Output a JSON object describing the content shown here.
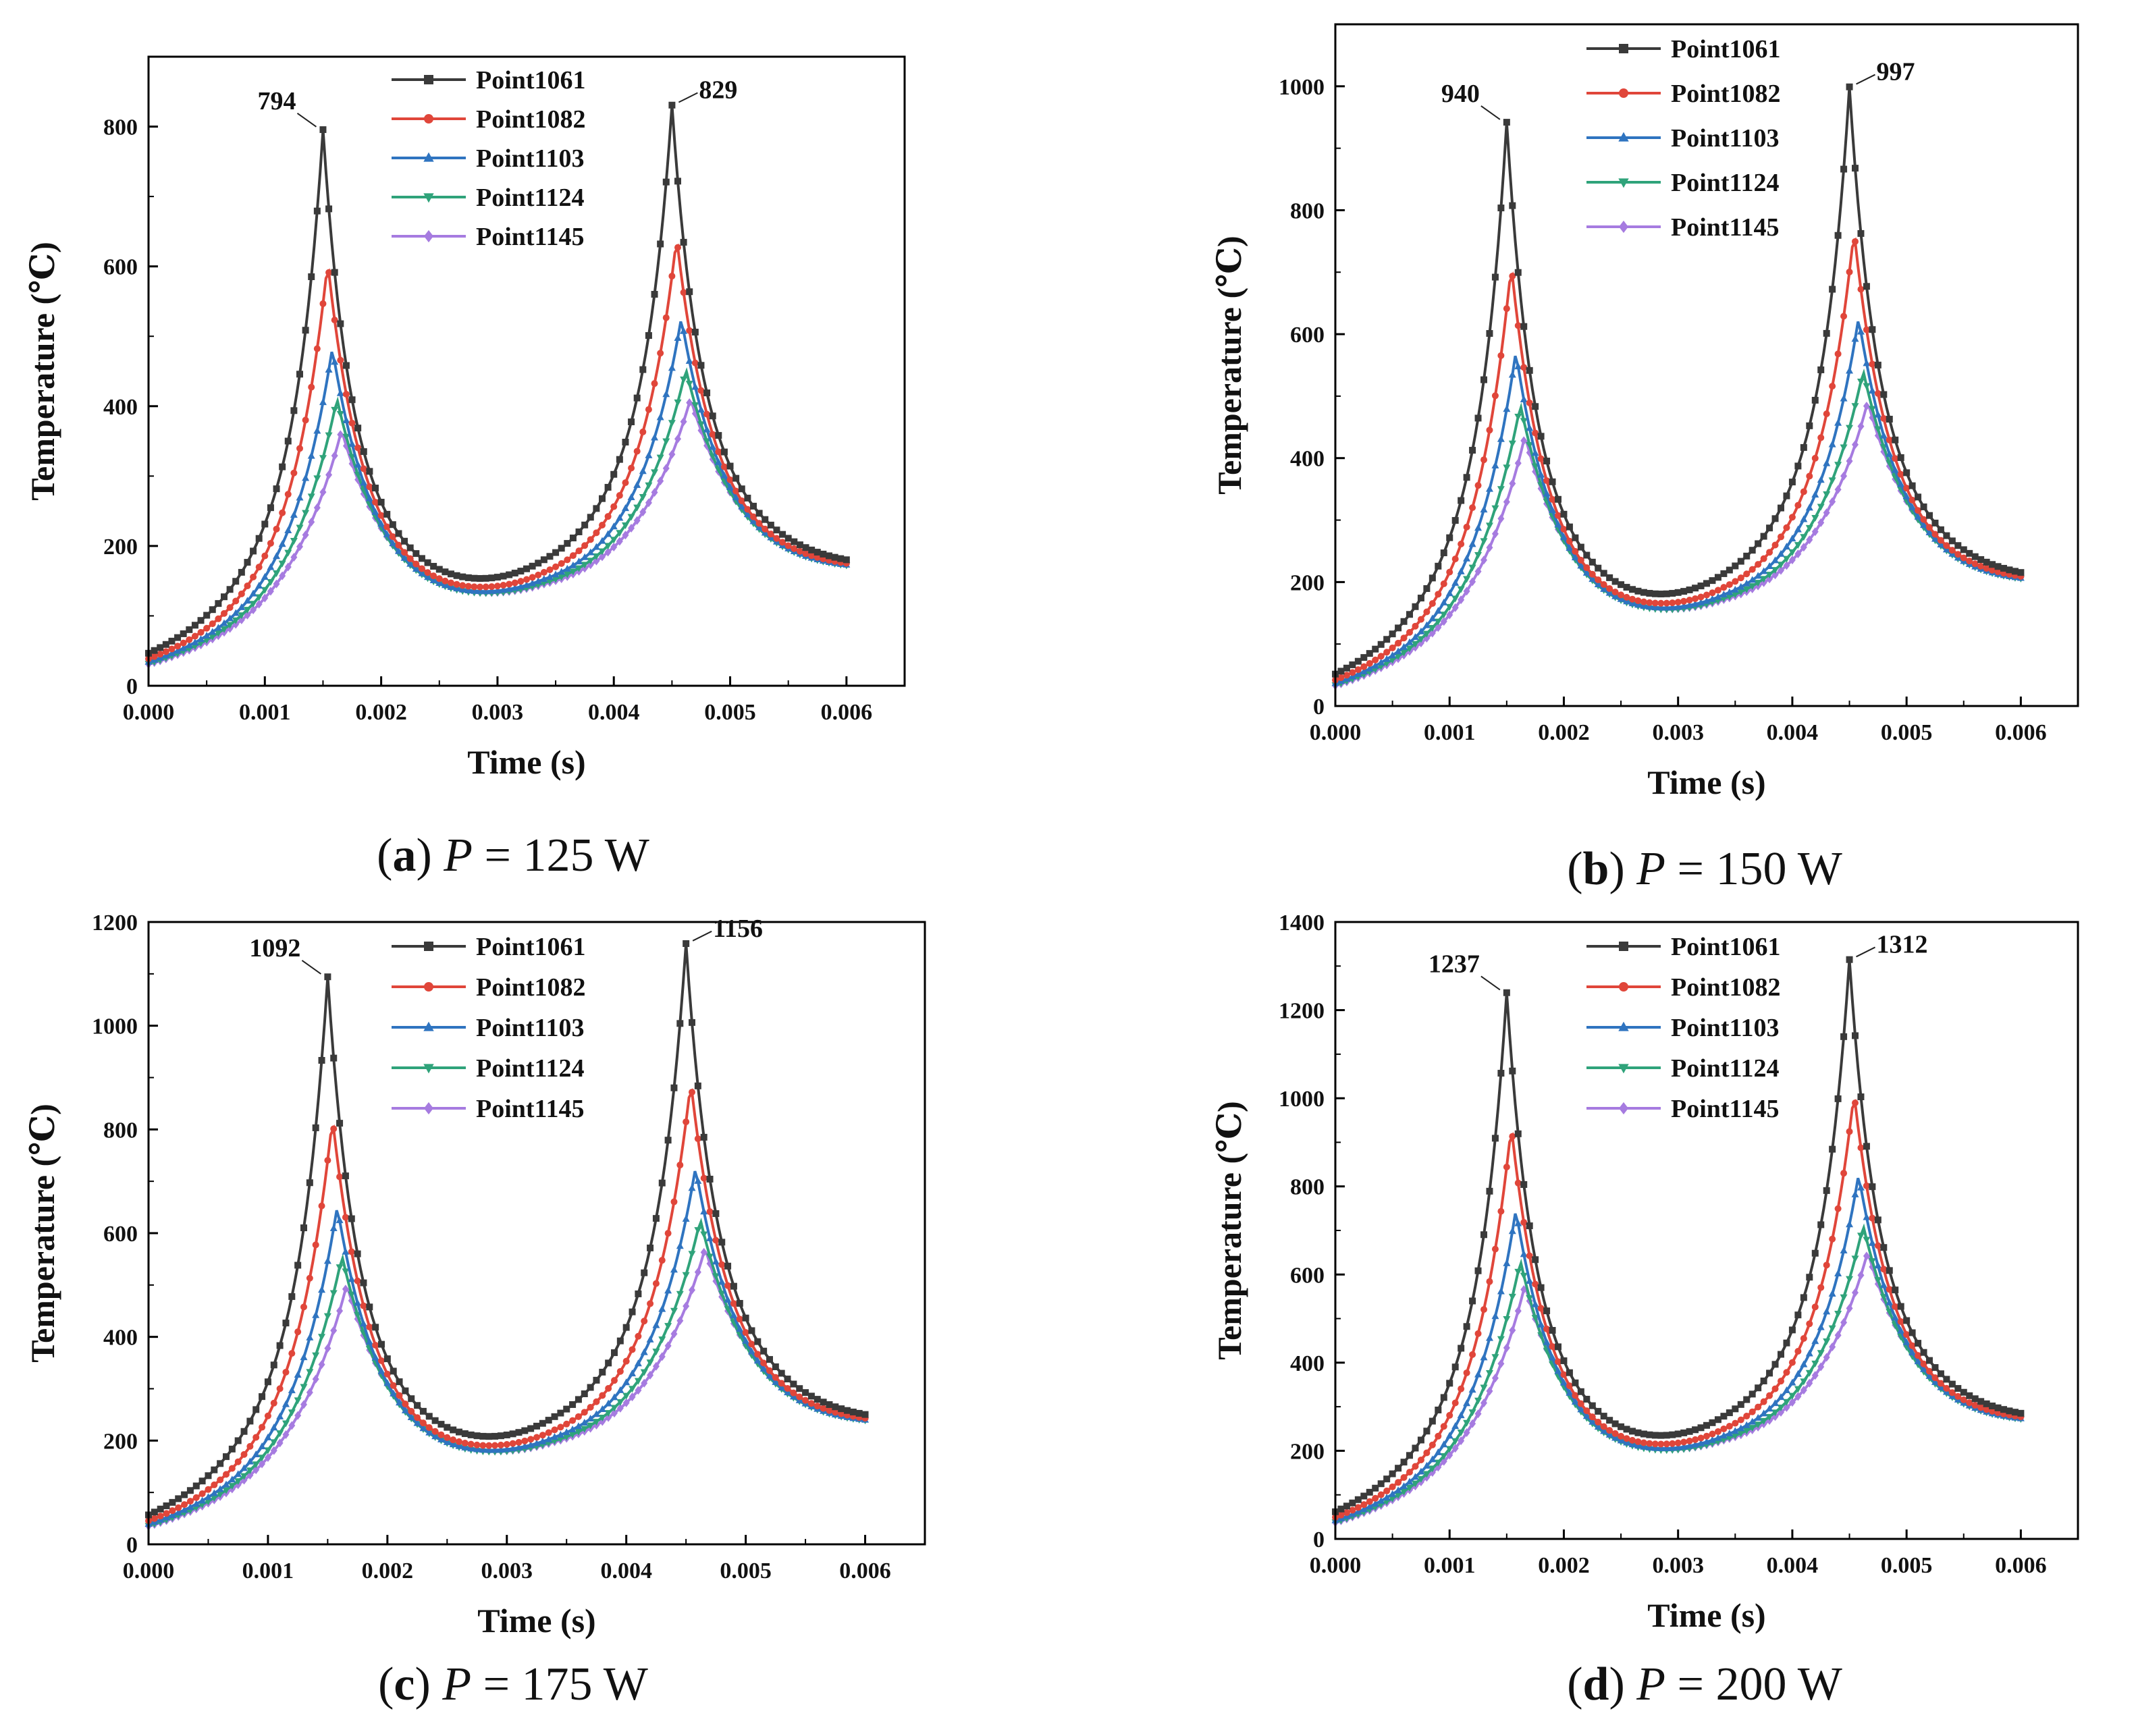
{
  "chart_data": [
    {
      "type": "line",
      "panel": "a",
      "caption": {
        "letter": "a",
        "var": "P",
        "rest": " = 125 W"
      },
      "xlabel": "Time (s)",
      "ylabel": "Temperature (℃)",
      "xlim": [
        0,
        0.0065
      ],
      "ylim": [
        0,
        900
      ],
      "xticks": [
        "0.000",
        "0.001",
        "0.002",
        "0.003",
        "0.004",
        "0.005",
        "0.006"
      ],
      "yticks": [
        "0",
        "200",
        "400",
        "600",
        "800"
      ],
      "ytick_values": [
        0,
        200,
        400,
        600,
        800
      ],
      "base": {
        "start": 20,
        "mid": 115,
        "end": 155
      },
      "series": [
        {
          "name": "Point1061",
          "color": "#3a3a3a",
          "marker": "square",
          "peak1": 794,
          "peak2": 829
        },
        {
          "name": "Point1082",
          "color": "#e0463a",
          "marker": "circle",
          "peak1": 605,
          "peak2": 640
        },
        {
          "name": "Point1103",
          "color": "#2f74c0",
          "marker": "triangle",
          "peak1": 482,
          "peak2": 525
        },
        {
          "name": "Point1124",
          "color": "#2fa37a",
          "marker": "tri-down",
          "peak1": 410,
          "peak2": 452
        },
        {
          "name": "Point1145",
          "color": "#a67be0",
          "marker": "diamond",
          "peak1": 365,
          "peak2": 410
        }
      ],
      "annotations": [
        "794",
        "829"
      ]
    },
    {
      "type": "line",
      "panel": "b",
      "caption": {
        "letter": "b",
        "var": "P",
        "rest": " = 150 W"
      },
      "xlabel": "Time (s)",
      "ylabel": "Temperature (℃)",
      "xlim": [
        0,
        0.0065
      ],
      "ylim": [
        0,
        1100
      ],
      "xticks": [
        "0.000",
        "0.001",
        "0.002",
        "0.003",
        "0.004",
        "0.005",
        "0.006"
      ],
      "yticks": [
        "0",
        "200",
        "400",
        "600",
        "800",
        "1000"
      ],
      "ytick_values": [
        0,
        200,
        400,
        600,
        800,
        1000
      ],
      "base": {
        "start": 20,
        "mid": 135,
        "end": 185
      },
      "series": [
        {
          "name": "Point1061",
          "color": "#3a3a3a",
          "marker": "square",
          "peak1": 940,
          "peak2": 997
        },
        {
          "name": "Point1082",
          "color": "#e0463a",
          "marker": "circle",
          "peak1": 710,
          "peak2": 765
        },
        {
          "name": "Point1103",
          "color": "#2f74c0",
          "marker": "triangle",
          "peak1": 570,
          "peak2": 625
        },
        {
          "name": "Point1124",
          "color": "#2fa37a",
          "marker": "tri-down",
          "peak1": 485,
          "peak2": 540
        },
        {
          "name": "Point1145",
          "color": "#a67be0",
          "marker": "diamond",
          "peak1": 435,
          "peak2": 490
        }
      ],
      "annotations": [
        "940",
        "997"
      ]
    },
    {
      "type": "line",
      "panel": "c",
      "caption": {
        "letter": "c",
        "var": "P",
        "rest": " = 175 W"
      },
      "xlabel": "Time (s)",
      "ylabel": "Temperature (℃)",
      "xlim": [
        0,
        0.0065
      ],
      "ylim": [
        0,
        1200
      ],
      "xticks": [
        "0.000",
        "0.001",
        "0.002",
        "0.003",
        "0.004",
        "0.005",
        "0.006"
      ],
      "yticks": [
        "0",
        "200",
        "400",
        "600",
        "800",
        "1000",
        "1200"
      ],
      "ytick_values": [
        0,
        200,
        400,
        600,
        800,
        1000,
        1200
      ],
      "base": {
        "start": 20,
        "mid": 155,
        "end": 215
      },
      "series": [
        {
          "name": "Point1061",
          "color": "#3a3a3a",
          "marker": "square",
          "peak1": 1092,
          "peak2": 1156
        },
        {
          "name": "Point1082",
          "color": "#e0463a",
          "marker": "circle",
          "peak1": 820,
          "peak2": 890
        },
        {
          "name": "Point1103",
          "color": "#2f74c0",
          "marker": "triangle",
          "peak1": 650,
          "peak2": 725
        },
        {
          "name": "Point1124",
          "color": "#2fa37a",
          "marker": "tri-down",
          "peak1": 555,
          "peak2": 625
        },
        {
          "name": "Point1145",
          "color": "#a67be0",
          "marker": "diamond",
          "peak1": 500,
          "peak2": 570
        }
      ],
      "annotations": [
        "1092",
        "1156"
      ]
    },
    {
      "type": "line",
      "panel": "d",
      "caption": {
        "letter": "d",
        "var": "P",
        "rest": " = 200 W"
      },
      "xlabel": "Time (s)",
      "ylabel": "Temperature (℃)",
      "xlim": [
        0,
        0.0065
      ],
      "ylim": [
        0,
        1400
      ],
      "xticks": [
        "0.000",
        "0.001",
        "0.002",
        "0.003",
        "0.004",
        "0.005",
        "0.006"
      ],
      "yticks": [
        "0",
        "200",
        "400",
        "600",
        "800",
        "1000",
        "1200",
        "1400"
      ],
      "ytick_values": [
        0,
        200,
        400,
        600,
        800,
        1000,
        1200,
        1400
      ],
      "base": {
        "start": 20,
        "mid": 175,
        "end": 245
      },
      "series": [
        {
          "name": "Point1061",
          "color": "#3a3a3a",
          "marker": "square",
          "peak1": 1237,
          "peak2": 1312
        },
        {
          "name": "Point1082",
          "color": "#e0463a",
          "marker": "circle",
          "peak1": 935,
          "peak2": 1010
        },
        {
          "name": "Point1103",
          "color": "#2f74c0",
          "marker": "triangle",
          "peak1": 745,
          "peak2": 825
        },
        {
          "name": "Point1124",
          "color": "#2fa37a",
          "marker": "tri-down",
          "peak1": 630,
          "peak2": 710
        },
        {
          "name": "Point1145",
          "color": "#a67be0",
          "marker": "diamond",
          "peak1": 575,
          "peak2": 650
        }
      ],
      "annotations": [
        "1237",
        "1312"
      ]
    }
  ]
}
